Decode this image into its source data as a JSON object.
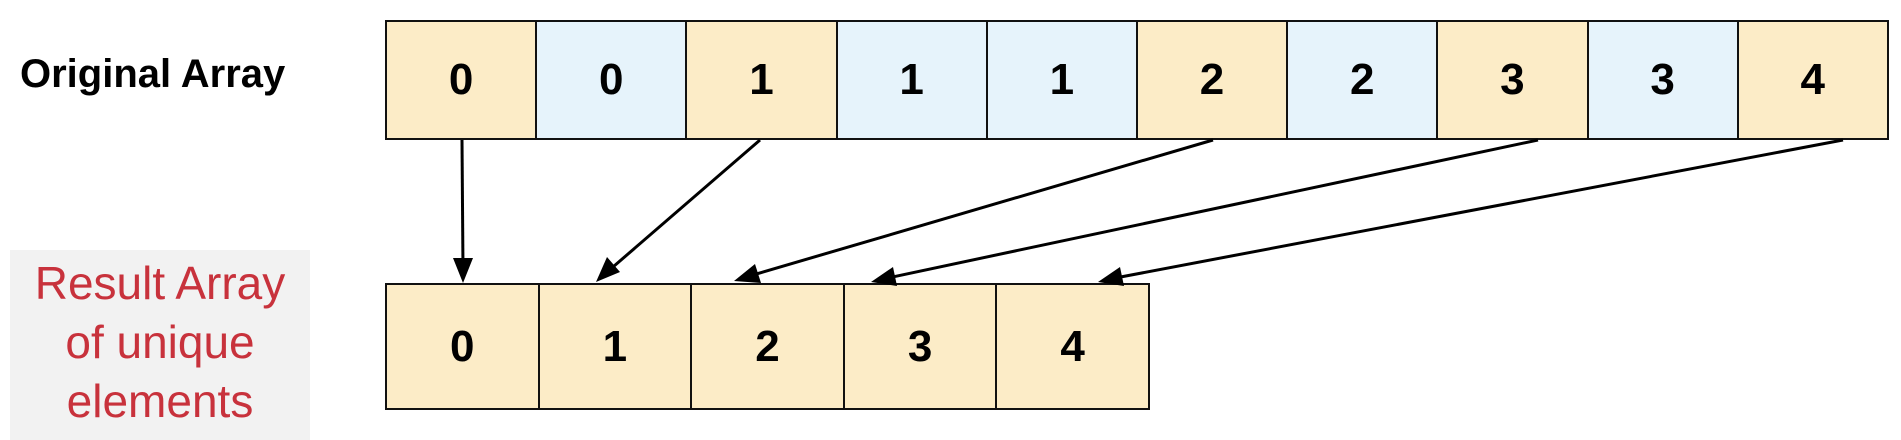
{
  "original": {
    "label": "Original Array",
    "cells": [
      {
        "value": "0",
        "color": "#fcecc7"
      },
      {
        "value": "0",
        "color": "#e6f3fb"
      },
      {
        "value": "1",
        "color": "#fcecc7"
      },
      {
        "value": "1",
        "color": "#e6f3fb"
      },
      {
        "value": "1",
        "color": "#e6f3fb"
      },
      {
        "value": "2",
        "color": "#fcecc7"
      },
      {
        "value": "2",
        "color": "#e6f3fb"
      },
      {
        "value": "3",
        "color": "#fcecc7"
      },
      {
        "value": "3",
        "color": "#e6f3fb"
      },
      {
        "value": "4",
        "color": "#fcecc7"
      }
    ]
  },
  "result": {
    "label_lines": [
      "Result Array",
      "of unique",
      "elements"
    ],
    "label_color": "#c8323c",
    "cells": [
      {
        "value": "0",
        "color": "#fcecc7"
      },
      {
        "value": "1",
        "color": "#fcecc7"
      },
      {
        "value": "2",
        "color": "#fcecc7"
      },
      {
        "value": "3",
        "color": "#fcecc7"
      },
      {
        "value": "4",
        "color": "#fcecc7"
      }
    ]
  },
  "mappings": [
    {
      "from_index": 0,
      "to_index": 0
    },
    {
      "from_index": 2,
      "to_index": 1
    },
    {
      "from_index": 5,
      "to_index": 2
    },
    {
      "from_index": 7,
      "to_index": 3
    },
    {
      "from_index": 9,
      "to_index": 4
    }
  ]
}
